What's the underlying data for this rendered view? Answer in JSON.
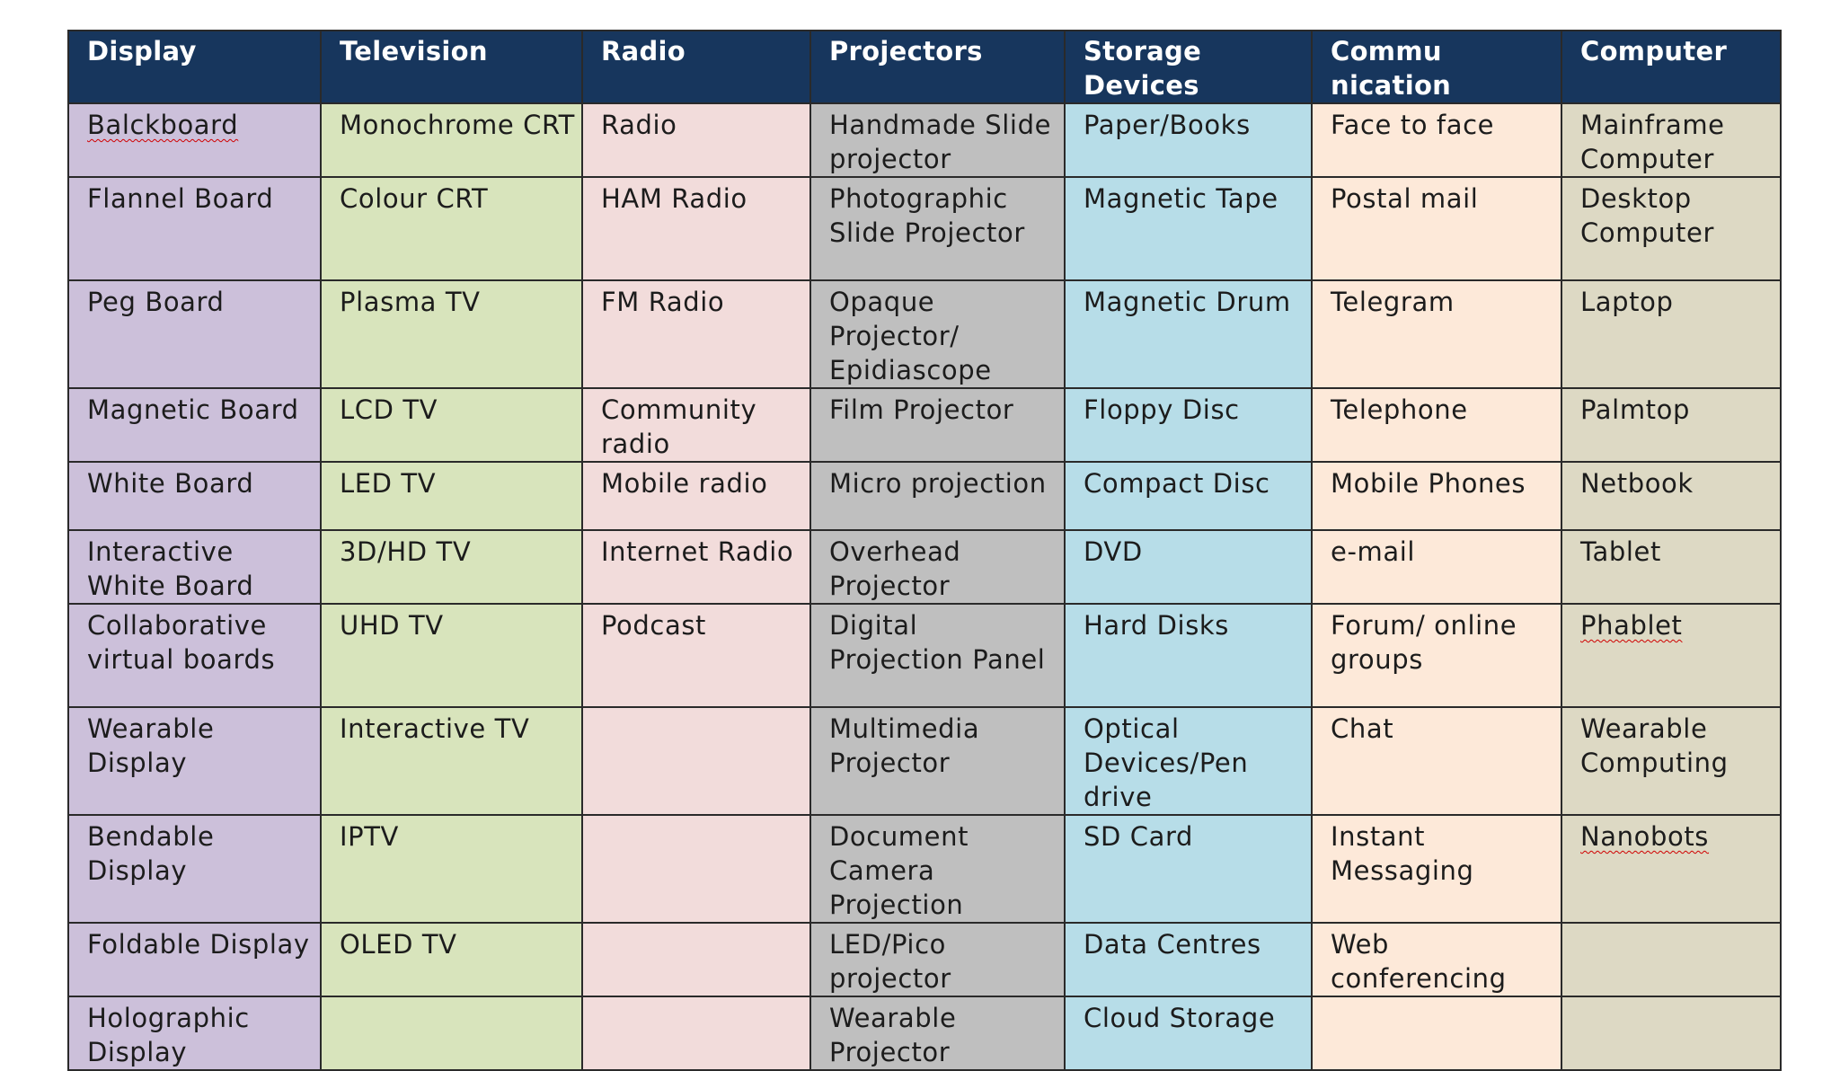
{
  "table": {
    "headers": [
      "Display",
      "Television",
      "Radio",
      "Projectors",
      "Storage Devices",
      "Commu nication",
      "Computer"
    ],
    "rows": [
      [
        "Balckboard",
        "Monochrome CRT",
        "Radio",
        "Handmade Slide projector",
        "Paper/Books",
        "Face to face",
        "Mainframe Computer"
      ],
      [
        "Flannel Board",
        "Colour CRT",
        "HAM Radio",
        "Photographic Slide Projector",
        "Magnetic Tape",
        "Postal mail",
        "Desktop Computer"
      ],
      [
        "Peg Board",
        "Plasma TV",
        "FM Radio",
        "Opaque Projector/ Epidiascope",
        "Magnetic Drum",
        "Telegram",
        "Laptop"
      ],
      [
        "Magnetic Board",
        "LCD TV",
        "Community radio",
        "Film Projector",
        "Floppy Disc",
        "Telephone",
        "Palmtop"
      ],
      [
        "White Board",
        "LED TV",
        "Mobile radio",
        "Micro projection",
        "Compact Disc",
        "Mobile Phones",
        "Netbook"
      ],
      [
        "Interactive White Board",
        "3D/HD TV",
        "Internet Radio",
        "Overhead Projector",
        "DVD",
        "e-mail",
        "Tablet"
      ],
      [
        "Collaborative virtual boards",
        "UHD TV",
        "Podcast",
        "Digital Projection Panel",
        "Hard Disks",
        "Forum/ online groups",
        "Phablet"
      ],
      [
        "Wearable Display",
        "Interactive TV",
        "",
        "Multimedia Projector",
        "Optical Devices/Pen drive",
        "Chat",
        "Wearable Computing"
      ],
      [
        "Bendable Display",
        "IPTV",
        "",
        "Document Camera Projection",
        "SD Card",
        "Instant Messaging",
        "Nanobots"
      ],
      [
        "Foldable Display",
        "OLED TV",
        "",
        "LED/Pico projector",
        "Data Centres",
        "Web conferencing",
        ""
      ],
      [
        "Holographic Display",
        "",
        "",
        "Wearable Projector",
        "Cloud Storage",
        "",
        ""
      ]
    ]
  },
  "colors": {
    "header_bg": "#17365d",
    "header_text": "#ffffff",
    "display_col": "#ccc0da",
    "television_col": "#d8e4bc",
    "radio_col": "#f2dcdb",
    "projectors_col": "#bfbfbf",
    "storage_col": "#b7dde8",
    "communication_col": "#fde9d9",
    "computer_col": "#ddd9c4",
    "spellcheck_underline": "#d00000"
  }
}
